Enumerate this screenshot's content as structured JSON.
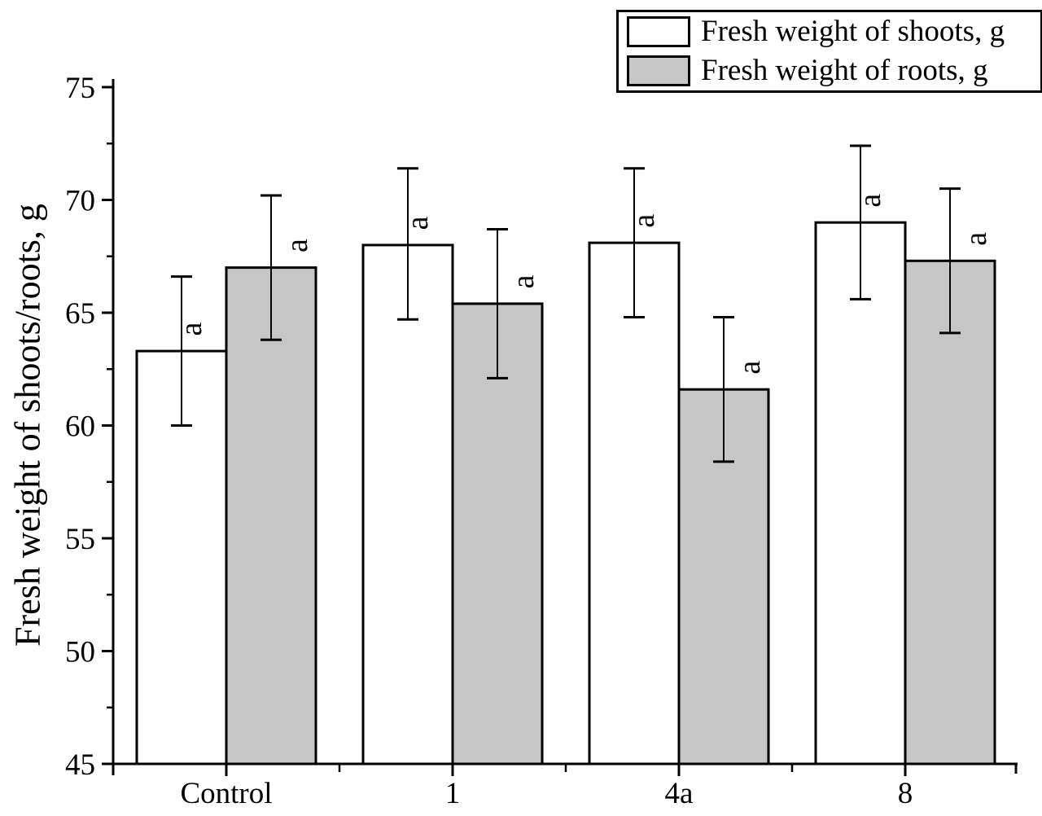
{
  "chart_data": {
    "type": "bar",
    "title": "",
    "xlabel": "",
    "ylabel": "Fresh weight of shoots/roots, g",
    "ylim": [
      45,
      75
    ],
    "yticks": [
      45,
      50,
      55,
      60,
      65,
      70,
      75
    ],
    "minor_tick_step": 2.5,
    "grid": "off",
    "legend_position": "top-right",
    "categories": [
      "Control",
      "1",
      "4a",
      "8"
    ],
    "series": [
      {
        "name": "Fresh weight of shoots, g",
        "fill": "#ffffff",
        "values": [
          63.3,
          68.0,
          68.1,
          69.0
        ],
        "err_low": [
          60.0,
          64.7,
          64.8,
          65.6
        ],
        "err_high": [
          66.6,
          71.4,
          71.4,
          72.4
        ],
        "sig_labels": [
          "a",
          "a",
          "a",
          "a"
        ]
      },
      {
        "name": "Fresh weight of roots, g",
        "fill": "#c6c6c6",
        "values": [
          67.0,
          65.4,
          61.6,
          67.3
        ],
        "err_low": [
          63.8,
          62.1,
          58.4,
          64.1
        ],
        "err_high": [
          70.2,
          68.7,
          64.8,
          70.5
        ],
        "sig_labels": [
          "a",
          "a",
          "a",
          "a"
        ]
      }
    ],
    "axis_color": "#000000"
  }
}
